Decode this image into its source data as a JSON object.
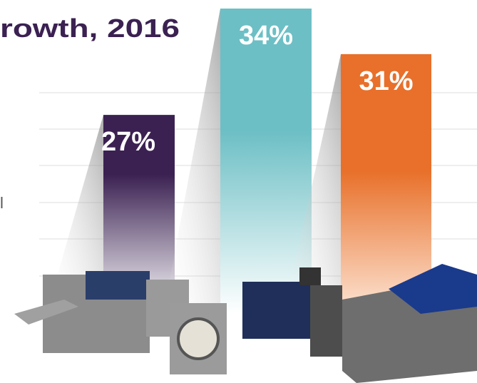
{
  "chart_data": {
    "type": "bar",
    "title": "rowth, 2016",
    "annotation": "l",
    "categories": [
      null,
      null,
      null
    ],
    "values": [
      27,
      34,
      31
    ],
    "value_labels": [
      "27%",
      "34%",
      "31%"
    ],
    "colors": [
      "#3b2152",
      "#6cbfc5",
      "#e8702a"
    ]
  }
}
